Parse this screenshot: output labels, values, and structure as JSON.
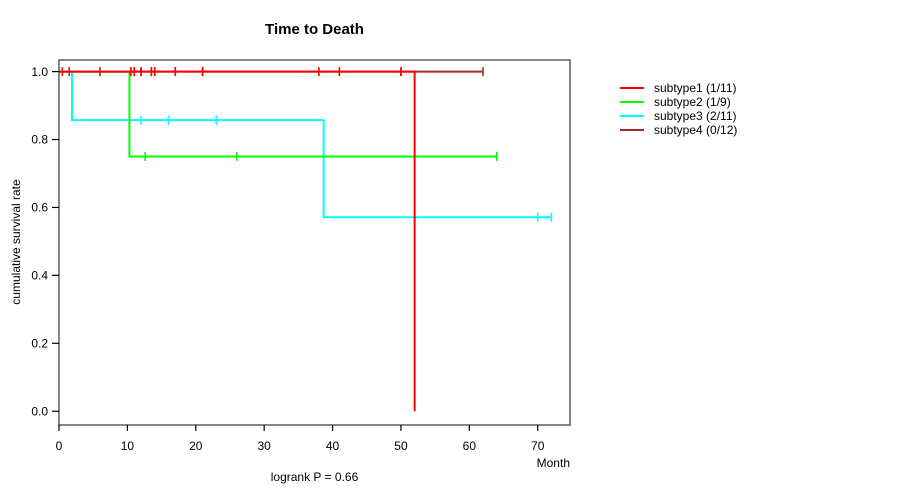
{
  "figure": {
    "title": "Time to Death",
    "footnote": "logrank P = 0.66"
  },
  "chart_data": {
    "type": "line",
    "subtype": "kaplan-meier-step-curves",
    "title": "Time to Death",
    "xlabel": "Month",
    "ylabel": "cumulative survival rate",
    "annotation": "logrank P = 0.66",
    "xlim": [
      0,
      74.7
    ],
    "ylim": [
      0.0,
      1.0
    ],
    "x_ticks": [
      0,
      10,
      20,
      30,
      40,
      50,
      60,
      70
    ],
    "y_ticks": [
      0.0,
      0.2,
      0.4,
      0.6,
      0.8,
      1.0
    ],
    "y_tick_labels": [
      "0.0",
      "0.2",
      "0.4",
      "0.6",
      "0.8",
      "1.0"
    ],
    "grid": false,
    "legend_position": "right-outside",
    "axis_color": "#444444",
    "series": [
      {
        "name": "subtype1 (1/11)",
        "color": "#FF0000",
        "z": 4,
        "steps": [
          [
            0,
            1.0
          ],
          [
            52,
            1.0
          ],
          [
            52,
            0.0
          ]
        ],
        "censor_marks": [
          [
            10.5,
            1.0
          ],
          [
            11,
            1.0
          ],
          [
            12,
            1.0
          ],
          [
            13.5,
            1.0
          ],
          [
            14,
            1.0
          ],
          [
            17,
            1.0
          ],
          [
            21,
            1.0
          ],
          [
            38,
            1.0
          ],
          [
            41,
            1.0
          ],
          [
            50,
            1.0
          ]
        ]
      },
      {
        "name": "subtype2 (1/9)",
        "color": "#00FF00",
        "z": 3,
        "steps": [
          [
            0,
            1.0
          ],
          [
            10.3,
            1.0
          ],
          [
            10.3,
            0.75
          ],
          [
            64,
            0.75
          ]
        ],
        "censor_marks": [
          [
            12.6,
            0.75
          ],
          [
            26,
            0.75
          ],
          [
            64,
            0.75
          ]
        ]
      },
      {
        "name": "subtype3 (2/11)",
        "color": "#00FFFF",
        "z": 1,
        "steps": [
          [
            0,
            1.0
          ],
          [
            1.9,
            1.0
          ],
          [
            1.9,
            0.857
          ],
          [
            38.7,
            0.857
          ],
          [
            38.7,
            0.571
          ],
          [
            72,
            0.571
          ]
        ],
        "censor_marks": [
          [
            12,
            0.857
          ],
          [
            16,
            0.857
          ],
          [
            23,
            0.857
          ],
          [
            70,
            0.571
          ],
          [
            72,
            0.571
          ]
        ]
      },
      {
        "name": "subtype4 (0/12)",
        "color": "#A52A2A",
        "z": 2,
        "steps": [
          [
            0,
            1.0
          ],
          [
            62,
            1.0
          ]
        ],
        "censor_marks": [
          [
            0.5,
            1.0
          ],
          [
            1.5,
            1.0
          ],
          [
            6,
            1.0
          ],
          [
            10.5,
            1.0
          ],
          [
            11,
            1.0
          ],
          [
            12,
            1.0
          ],
          [
            13.5,
            1.0
          ],
          [
            14,
            1.0
          ],
          [
            17,
            1.0
          ],
          [
            21,
            1.0
          ],
          [
            50,
            1.0
          ],
          [
            62,
            1.0
          ]
        ]
      }
    ]
  }
}
